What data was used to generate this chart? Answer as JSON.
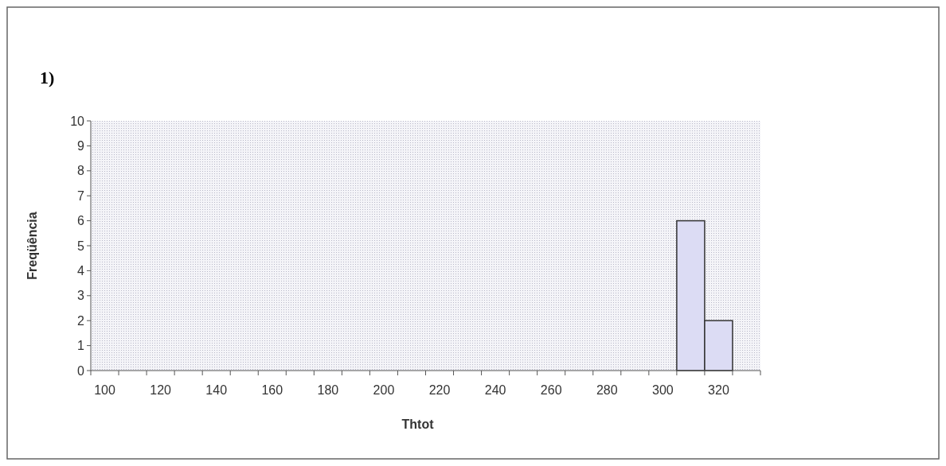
{
  "chart_data": {
    "type": "bar",
    "title": "1)",
    "xlabel": "Thtot",
    "ylabel": "Freqüência",
    "categories": [
      "100",
      null,
      "120",
      null,
      "140",
      null,
      "160",
      null,
      "180",
      null,
      "200",
      null,
      "220",
      null,
      "240",
      null,
      "260",
      null,
      "280",
      null,
      "300",
      null,
      "320",
      null
    ],
    "values": [
      0,
      0,
      0,
      0,
      0,
      0,
      0,
      0,
      0,
      0,
      0,
      0,
      0,
      0,
      0,
      0,
      0,
      0,
      0,
      0,
      0,
      6,
      2,
      0
    ],
    "color": "#dcdcf4",
    "ylim": [
      0,
      10
    ],
    "yticks": [
      0,
      1,
      2,
      3,
      4,
      5,
      6,
      7,
      8,
      9,
      10
    ]
  }
}
